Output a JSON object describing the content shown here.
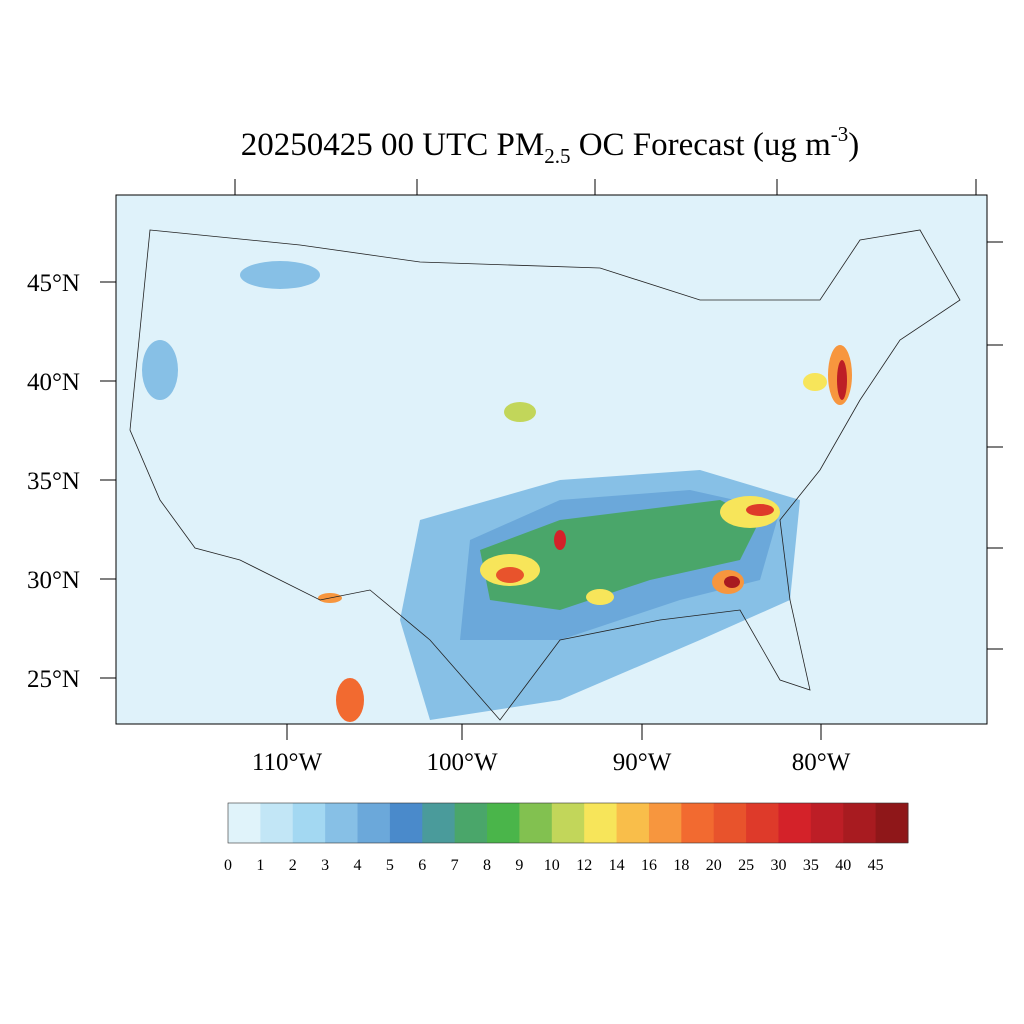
{
  "title": {
    "main": "20250425 00 UTC PM",
    "subscript": "2.5",
    "middle": " OC Forecast (ug m",
    "superscript": "-3",
    "end": ")"
  },
  "lat_labels": [
    "45°N",
    "40°N",
    "35°N",
    "30°N",
    "25°N"
  ],
  "lon_labels": [
    "110°W",
    "100°W",
    "90°W",
    "80°W"
  ],
  "colorbar": {
    "labels": [
      0,
      1,
      2,
      3,
      4,
      5,
      6,
      7,
      8,
      9,
      10,
      12,
      14,
      16,
      18,
      20,
      25,
      30,
      35,
      40,
      45
    ],
    "colors": [
      "#e0f3fa",
      "#c2e6f6",
      "#a3d8f2",
      "#87c0e6",
      "#6ba8da",
      "#4a8acb",
      "#4a9b9b",
      "#4aa66a",
      "#4ab54a",
      "#82c150",
      "#c2d65a",
      "#f7e55a",
      "#f9be4a",
      "#f7963e",
      "#f26a30",
      "#e8532c",
      "#de3a2a",
      "#d42229",
      "#bd1e26",
      "#a81b20",
      "#8f1719"
    ]
  }
}
